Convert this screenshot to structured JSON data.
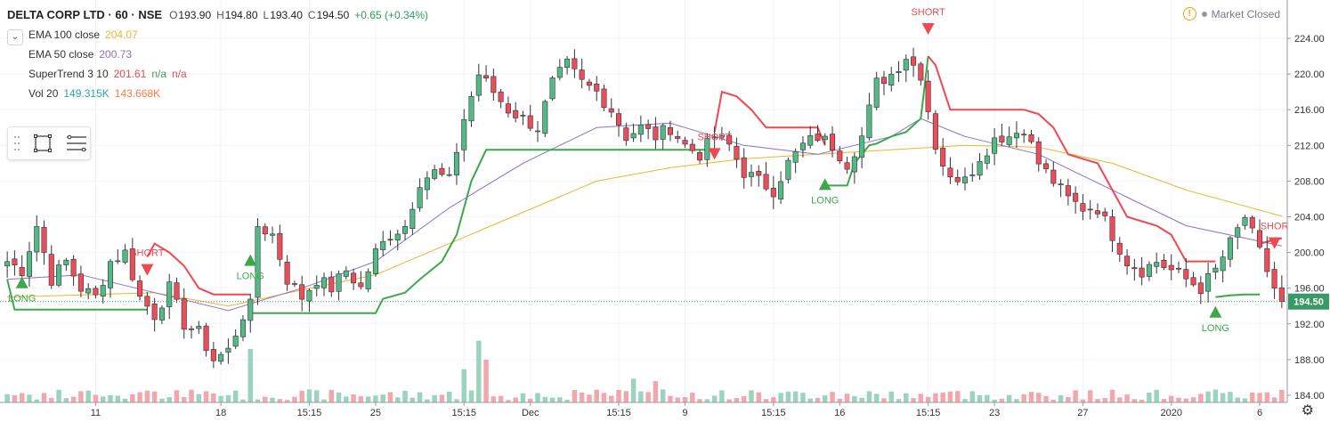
{
  "legend": {
    "symbol": "DELTA CORP LTD · 60 · NSE",
    "open": "193.90",
    "high": "194.80",
    "low": "193.40",
    "close": "194.50",
    "change": "+0.65 (+0.34%)",
    "ema100": {
      "name": "EMA 100 close",
      "value": "204.07"
    },
    "ema50": {
      "name": "EMA 50 close",
      "value": "200.73"
    },
    "supertrend": {
      "name": "SuperTrend 3 10",
      "value": "201.61",
      "extra1": "n/a",
      "extra2": "n/a"
    },
    "vol": {
      "name": "Vol 20",
      "value": "149.315K",
      "value2": "143.668K"
    }
  },
  "status": {
    "market": "Market Closed"
  },
  "labels": {
    "o": "O",
    "h": "H",
    "l": "L",
    "c": "C"
  },
  "colors": {
    "up": "#53b987",
    "down": "#eb4d5c",
    "ema100": "#f0b429",
    "ema50": "#8c6dd1",
    "st_up": "#3da84a",
    "st_down": "#f0484f",
    "vol_up": "#9bd3bf",
    "vol_down": "#f2a7ad",
    "price_label": "#3a9a66"
  },
  "chart_data": {
    "type": "candlestick",
    "title": "DELTA CORP LTD · 60 · NSE",
    "ylim": [
      184,
      225
    ],
    "yticks": [
      184,
      188,
      192,
      196,
      200,
      204,
      208,
      212,
      216,
      220,
      224
    ],
    "bar_count": 174,
    "x_ticks": [
      {
        "index": 12,
        "label": "11"
      },
      {
        "index": 29,
        "label": "18"
      },
      {
        "index": 41,
        "label": "15:15"
      },
      {
        "index": 50,
        "label": "25"
      },
      {
        "index": 62,
        "label": "15:15"
      },
      {
        "index": 71,
        "label": "Dec"
      },
      {
        "index": 83,
        "label": "15:15"
      },
      {
        "index": 92,
        "label": "9"
      },
      {
        "index": 104,
        "label": "15:15"
      },
      {
        "index": 113,
        "label": "16"
      },
      {
        "index": 125,
        "label": "15:15"
      },
      {
        "index": 134,
        "label": "23"
      },
      {
        "index": 146,
        "label": "27"
      },
      {
        "index": 158,
        "label": "2020"
      },
      {
        "index": 170,
        "label": "6"
      }
    ],
    "price_anchors": [
      [
        0,
        199
      ],
      [
        2,
        198
      ],
      [
        4,
        203
      ],
      [
        6,
        197
      ],
      [
        8,
        199
      ],
      [
        10,
        196
      ],
      [
        12,
        195
      ],
      [
        14,
        199
      ],
      [
        16,
        200
      ],
      [
        18,
        195
      ],
      [
        20,
        193
      ],
      [
        22,
        196
      ],
      [
        24,
        192
      ],
      [
        26,
        191
      ],
      [
        28,
        188
      ],
      [
        30,
        189
      ],
      [
        32,
        193
      ],
      [
        33,
        194
      ],
      [
        34,
        203
      ],
      [
        36,
        202
      ],
      [
        38,
        197
      ],
      [
        40,
        195
      ],
      [
        42,
        197
      ],
      [
        44,
        196
      ],
      [
        46,
        198
      ],
      [
        48,
        196
      ],
      [
        50,
        200
      ],
      [
        52,
        202
      ],
      [
        54,
        203
      ],
      [
        56,
        208
      ],
      [
        58,
        209
      ],
      [
        60,
        208
      ],
      [
        62,
        215
      ],
      [
        64,
        220
      ],
      [
        66,
        218
      ],
      [
        68,
        216
      ],
      [
        70,
        215
      ],
      [
        72,
        214
      ],
      [
        74,
        219
      ],
      [
        76,
        221
      ],
      [
        78,
        219
      ],
      [
        80,
        218
      ],
      [
        82,
        216
      ],
      [
        84,
        213
      ],
      [
        86,
        214
      ],
      [
        88,
        213
      ],
      [
        90,
        214
      ],
      [
        92,
        212
      ],
      [
        94,
        211
      ],
      [
        96,
        213
      ],
      [
        98,
        212
      ],
      [
        100,
        209
      ],
      [
        102,
        208
      ],
      [
        104,
        207
      ],
      [
        106,
        210
      ],
      [
        108,
        212
      ],
      [
        110,
        213
      ],
      [
        112,
        212
      ],
      [
        114,
        210
      ],
      [
        116,
        213
      ],
      [
        118,
        219
      ],
      [
        120,
        220
      ],
      [
        122,
        222
      ],
      [
        124,
        220
      ],
      [
        126,
        212
      ],
      [
        128,
        208
      ],
      [
        130,
        209
      ],
      [
        132,
        210
      ],
      [
        134,
        213
      ],
      [
        136,
        213
      ],
      [
        138,
        214
      ],
      [
        140,
        210
      ],
      [
        142,
        208
      ],
      [
        144,
        206
      ],
      [
        146,
        205
      ],
      [
        148,
        205
      ],
      [
        150,
        202
      ],
      [
        152,
        199
      ],
      [
        154,
        198
      ],
      [
        156,
        199
      ],
      [
        158,
        198
      ],
      [
        160,
        197
      ],
      [
        162,
        196
      ],
      [
        164,
        198
      ],
      [
        166,
        201
      ],
      [
        168,
        204
      ],
      [
        170,
        200
      ],
      [
        172,
        196
      ],
      [
        173,
        194.5
      ]
    ],
    "volume_ylim": [
      0,
      60
    ],
    "volume_spikes": [
      [
        33,
        45
      ],
      [
        64,
        52
      ],
      [
        65,
        36
      ],
      [
        62,
        28
      ],
      [
        85,
        20
      ],
      [
        88,
        18
      ]
    ],
    "ema100_anchors": [
      [
        0,
        195
      ],
      [
        20,
        195.5
      ],
      [
        30,
        194
      ],
      [
        40,
        195.8
      ],
      [
        50,
        197.5
      ],
      [
        60,
        201
      ],
      [
        70,
        204.5
      ],
      [
        80,
        208
      ],
      [
        90,
        209.5
      ],
      [
        100,
        210.5
      ],
      [
        110,
        211
      ],
      [
        120,
        211.5
      ],
      [
        130,
        212
      ],
      [
        140,
        211.8
      ],
      [
        150,
        210
      ],
      [
        160,
        207
      ],
      [
        173,
        204.07
      ]
    ],
    "ema50_anchors": [
      [
        0,
        197
      ],
      [
        10,
        197.5
      ],
      [
        20,
        195.5
      ],
      [
        30,
        193.5
      ],
      [
        40,
        196
      ],
      [
        50,
        199
      ],
      [
        60,
        205
      ],
      [
        70,
        210
      ],
      [
        80,
        214
      ],
      [
        90,
        214.5
      ],
      [
        100,
        212
      ],
      [
        110,
        211
      ],
      [
        120,
        213
      ],
      [
        124,
        215
      ],
      [
        130,
        213
      ],
      [
        140,
        211
      ],
      [
        150,
        207
      ],
      [
        160,
        203
      ],
      [
        173,
        200.73
      ]
    ],
    "supertrend_segments": [
      {
        "dir": "up",
        "points": [
          [
            0,
            197
          ],
          [
            1,
            193.6
          ],
          [
            19,
            193.6
          ]
        ]
      },
      {
        "dir": "down",
        "points": [
          [
            19,
            199.5
          ],
          [
            20,
            201
          ],
          [
            22,
            200
          ],
          [
            24,
            198.5
          ],
          [
            26,
            196
          ],
          [
            28,
            195.3
          ],
          [
            33,
            195.3
          ]
        ]
      },
      {
        "dir": "up",
        "points": [
          [
            33,
            193.2
          ],
          [
            40,
            193.2
          ],
          [
            50,
            193.2
          ],
          [
            51,
            194.8
          ],
          [
            54,
            195.5
          ],
          [
            56,
            197
          ],
          [
            59,
            199
          ],
          [
            61,
            202
          ],
          [
            63,
            208
          ],
          [
            65,
            211.5
          ],
          [
            90,
            211.5
          ],
          [
            96,
            211.5
          ]
        ]
      },
      {
        "dir": "down",
        "points": [
          [
            96,
            213.5
          ],
          [
            97,
            218
          ],
          [
            99,
            217.5
          ],
          [
            101,
            216
          ],
          [
            103,
            214
          ],
          [
            110,
            214
          ],
          [
            111,
            212
          ]
        ]
      },
      {
        "dir": "up",
        "points": [
          [
            111,
            207.5
          ],
          [
            114,
            207.5
          ],
          [
            115,
            210
          ],
          [
            116,
            211
          ],
          [
            117,
            212
          ],
          [
            118,
            212.2
          ],
          [
            120,
            213
          ],
          [
            122,
            213.5
          ],
          [
            124,
            215
          ],
          [
            125,
            222
          ]
        ]
      },
      {
        "dir": "down",
        "points": [
          [
            125,
            222
          ],
          [
            126,
            221
          ],
          [
            128,
            216
          ],
          [
            138,
            216
          ],
          [
            140,
            215.5
          ],
          [
            142,
            214
          ],
          [
            144,
            211
          ],
          [
            146,
            210.5
          ],
          [
            148,
            210
          ],
          [
            150,
            207
          ],
          [
            152,
            204
          ],
          [
            156,
            203
          ],
          [
            158,
            202
          ],
          [
            160,
            199
          ],
          [
            162,
            199
          ],
          [
            164,
            199
          ]
        ]
      },
      {
        "dir": "up",
        "points": [
          [
            164,
            195
          ],
          [
            166,
            195.2
          ],
          [
            168,
            195.3
          ],
          [
            170,
            195.3
          ]
        ]
      },
      {
        "dir": "down",
        "points": [
          [
            170,
            201
          ],
          [
            173,
            201.61
          ]
        ]
      }
    ],
    "signals": [
      {
        "index": 2,
        "type": "LONG",
        "price": 196.5
      },
      {
        "index": 19,
        "type": "SHORT",
        "price": 198.0
      },
      {
        "index": 33,
        "type": "LONG",
        "price": 199.0
      },
      {
        "index": 96,
        "type": "SHORT",
        "price": 211.0
      },
      {
        "index": 111,
        "type": "LONG",
        "price": 207.5
      },
      {
        "index": 125,
        "type": "SHORT",
        "price": 225.0
      },
      {
        "index": 164,
        "type": "LONG",
        "price": 193.2
      },
      {
        "index": 172,
        "type": "SHOR",
        "price": 201.0
      }
    ],
    "last_price": 194.5,
    "last_price_label": "194.50"
  }
}
